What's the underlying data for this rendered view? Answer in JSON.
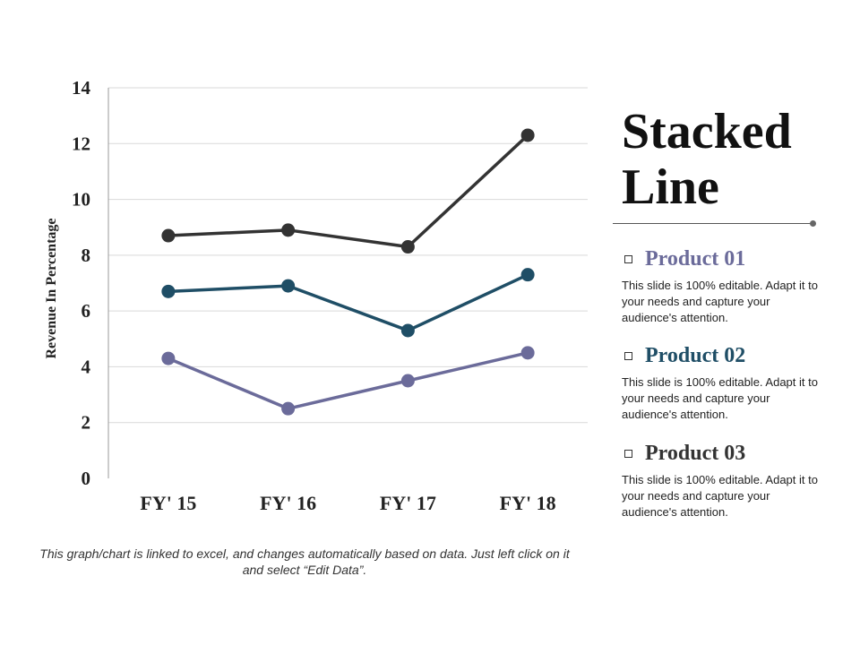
{
  "chart_data": {
    "type": "line",
    "categories": [
      "FY' 15",
      "FY' 16",
      "FY' 17",
      "FY' 18"
    ],
    "series": [
      {
        "name": "Product 01",
        "values": [
          4.3,
          2.5,
          3.5,
          4.5
        ],
        "color": "#6b6b9a"
      },
      {
        "name": "Product 02",
        "values": [
          6.7,
          6.9,
          5.3,
          7.3
        ],
        "color": "#1f4e66"
      },
      {
        "name": "Product 03",
        "values": [
          8.7,
          8.9,
          8.3,
          12.3
        ],
        "color": "#333333"
      }
    ],
    "ylabel": "Revenue In Percentage",
    "ylim": [
      0,
      14
    ],
    "yticks": [
      "0",
      "2",
      "4",
      "6",
      "8",
      "10",
      "12",
      "14"
    ],
    "grid": true
  },
  "title_line1": "Stacked",
  "title_line2": "Line",
  "footnote": "This graph/chart is linked to excel, and changes automatically based on data. Just left click on it and select “Edit Data”.",
  "legend": [
    {
      "name": "Product 01",
      "color": "#6b6b9a",
      "desc": "This slide is 100% editable. Adapt it to your needs and capture your audience's attention."
    },
    {
      "name": "Product 02",
      "color": "#1f4e66",
      "desc": "This slide is 100% editable. Adapt it to your needs and capture your audience's attention."
    },
    {
      "name": "Product 03",
      "color": "#333333",
      "desc": "This slide is 100% editable. Adapt it to your needs and capture your audience's attention."
    }
  ]
}
